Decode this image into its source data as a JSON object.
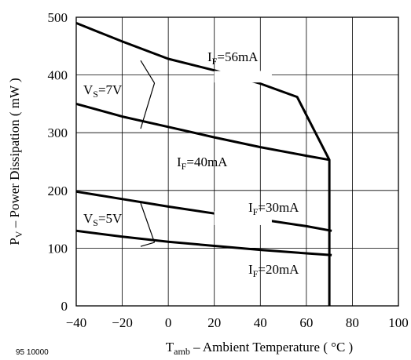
{
  "figure_number": "95 10000",
  "chart_data": {
    "type": "line",
    "xlabel": {
      "main": "T",
      "sub": "amb",
      "rest": " – Ambient Temperature ( °C )"
    },
    "ylabel": {
      "main": "P",
      "sub": "V",
      "rest": " – Power Dissipation ( mW )"
    },
    "xlim": [
      -40,
      100
    ],
    "ylim": [
      0,
      500
    ],
    "xticks": [
      -40,
      -20,
      0,
      20,
      40,
      60,
      80,
      100
    ],
    "yticks": [
      0,
      100,
      200,
      300,
      400,
      500
    ],
    "grid": true,
    "series": [
      {
        "name": "IF=56mA",
        "x": [
          -40,
          -20,
          0,
          20,
          40,
          56,
          70,
          70,
          70
        ],
        "y": [
          490,
          458,
          428,
          408,
          385,
          362,
          253,
          240,
          0
        ]
      },
      {
        "name": "IF=40mA",
        "x": [
          -40,
          -20,
          0,
          20,
          40,
          60,
          70
        ],
        "y": [
          350,
          328,
          310,
          292,
          275,
          260,
          253
        ]
      },
      {
        "name": "IF=30mA",
        "x": [
          -40,
          -20,
          0,
          20,
          40,
          60,
          71
        ],
        "y": [
          198,
          185,
          172,
          160,
          150,
          138,
          130
        ]
      },
      {
        "name": "IF=20mA",
        "x": [
          -40,
          -20,
          0,
          20,
          40,
          60,
          71
        ],
        "y": [
          130,
          120,
          111,
          104,
          97,
          91,
          88
        ]
      }
    ],
    "annotations": [
      {
        "id": "if56",
        "main": "I",
        "sub": "F",
        "rest": "=56mA"
      },
      {
        "id": "if40",
        "main": "I",
        "sub": "F",
        "rest": "=40mA"
      },
      {
        "id": "if30",
        "main": "I",
        "sub": "F",
        "rest": "=30mA"
      },
      {
        "id": "if20",
        "main": "I",
        "sub": "F",
        "rest": "=20mA"
      },
      {
        "id": "vs7",
        "main": "V",
        "sub": "S",
        "rest": "=7V"
      },
      {
        "id": "vs5",
        "main": "V",
        "sub": "S",
        "rest": "=5V"
      }
    ]
  }
}
